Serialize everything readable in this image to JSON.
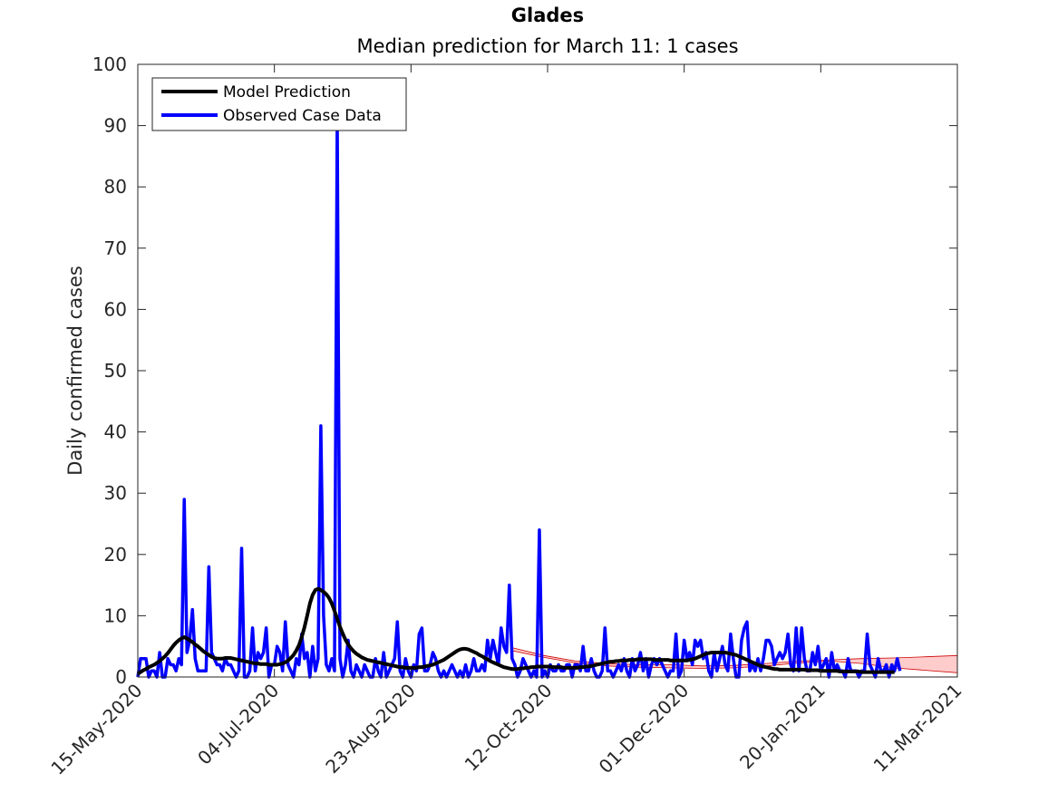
{
  "chart_data": {
    "type": "line",
    "title": "Glades",
    "subtitle": "Median prediction for March 11: 1 cases",
    "xlabel": "",
    "ylabel": "Daily confirmed cases",
    "xlim": [
      "2020-05-15",
      "2021-03-11"
    ],
    "ylim": [
      0,
      100
    ],
    "x_ticks": [
      "15-May-2020",
      "04-Jul-2020",
      "23-Aug-2020",
      "12-Oct-2020",
      "01-Dec-2020",
      "20-Jan-2021",
      "11-Mar-2021"
    ],
    "y_ticks": [
      0,
      10,
      20,
      30,
      40,
      50,
      60,
      70,
      80,
      90,
      100
    ],
    "grid": false,
    "legend_position": "top-left",
    "colors": {
      "prediction": "#000000",
      "observed": "#0000ff",
      "band_fill": "#ffcccc",
      "band_edge": "#cc0000"
    },
    "series": [
      {
        "name": "Model Prediction",
        "x_start": "2020-05-15",
        "x_step_days": 1,
        "values": [
          0.5,
          0.8,
          1.1,
          1.3,
          1.6,
          1.8,
          2.0,
          2.3,
          2.6,
          3.0,
          3.4,
          3.9,
          4.5,
          5.1,
          5.6,
          6.0,
          6.3,
          6.5,
          6.3,
          6.0,
          5.7,
          5.3,
          5.0,
          4.6,
          4.2,
          3.9,
          3.6,
          3.3,
          3.1,
          3.0,
          3.0,
          3.0,
          3.1,
          3.1,
          3.1,
          3.0,
          2.9,
          2.8,
          2.7,
          2.6,
          2.5,
          2.4,
          2.3,
          2.2,
          2.2,
          2.1,
          2.1,
          2.1,
          2.0,
          2.0,
          2.0,
          2.0,
          2.1,
          2.2,
          2.4,
          2.7,
          3.1,
          3.6,
          4.3,
          5.2,
          6.5,
          8.1,
          10.0,
          12.0,
          13.4,
          14.2,
          14.4,
          14.2,
          13.9,
          13.5,
          12.9,
          12.0,
          10.8,
          9.5,
          8.2,
          7.1,
          6.1,
          5.3,
          4.7,
          4.2,
          3.8,
          3.5,
          3.2,
          3.0,
          2.8,
          2.7,
          2.6,
          2.5,
          2.4,
          2.3,
          2.2,
          2.1,
          2.0,
          1.9,
          1.8,
          1.7,
          1.6,
          1.6,
          1.5,
          1.5,
          1.5,
          1.5,
          1.5,
          1.6,
          1.6,
          1.7,
          1.8,
          1.9,
          2.0,
          2.2,
          2.4,
          2.6,
          2.8,
          3.1,
          3.4,
          3.7,
          4.0,
          4.3,
          4.5,
          4.6,
          4.6,
          4.5,
          4.3,
          4.1,
          3.9,
          3.6,
          3.4,
          3.1,
          2.9,
          2.6,
          2.4,
          2.2,
          2.0,
          1.8,
          1.6,
          1.5,
          1.4,
          1.3,
          1.3,
          1.3,
          1.4,
          1.4,
          1.5,
          1.5,
          1.6,
          1.6,
          1.7,
          1.7,
          1.7,
          1.7,
          1.7,
          1.7,
          1.6,
          1.6,
          1.6,
          1.6,
          1.5,
          1.5,
          1.5,
          1.5,
          1.5,
          1.5,
          1.6,
          1.6,
          1.7,
          1.7,
          1.8,
          1.9,
          2.0,
          2.1,
          2.2,
          2.3,
          2.4,
          2.5,
          2.5,
          2.6,
          2.6,
          2.7,
          2.7,
          2.7,
          2.8,
          2.8,
          2.8,
          2.9,
          2.9,
          2.9,
          2.9,
          2.9,
          2.9,
          2.8,
          2.8,
          2.8,
          2.8,
          2.8,
          2.8,
          2.7,
          2.7,
          2.7,
          2.7,
          2.7,
          2.7,
          2.7,
          2.8,
          2.9,
          3.0,
          3.2,
          3.4,
          3.6,
          3.8,
          3.9,
          4.0,
          4.0,
          4.0,
          4.0,
          4.0,
          4.0,
          3.9,
          3.8,
          3.7,
          3.6,
          3.4,
          3.2,
          3.0,
          2.8,
          2.6,
          2.4,
          2.2,
          2.0,
          1.8,
          1.7,
          1.6,
          1.5,
          1.4,
          1.3,
          1.3,
          1.2,
          1.2,
          1.2,
          1.2,
          1.2,
          1.2,
          1.2,
          1.2,
          1.2,
          1.2,
          1.1,
          1.1,
          1.1,
          1.1,
          1.1,
          1.0,
          1.0,
          1.0,
          1.0,
          1.0,
          1.0,
          1.0,
          0.9,
          0.9,
          0.9,
          0.9,
          0.9,
          0.9,
          0.9,
          0.9,
          0.8,
          0.8,
          0.8,
          0.8,
          0.8,
          0.8,
          0.8,
          0.8,
          0.8,
          0.8,
          0.8,
          0.8,
          0.8
        ]
      },
      {
        "name": "Observed Case Data",
        "x_start": "2020-05-15",
        "x_step_days": 1,
        "values": [
          0,
          3,
          3,
          3,
          0,
          1,
          1,
          0,
          4,
          0,
          0,
          3,
          2,
          2,
          1,
          3,
          2,
          29,
          4,
          6,
          11,
          3,
          1,
          1,
          1,
          1,
          18,
          4,
          3,
          2,
          2,
          1,
          3,
          2,
          2,
          1,
          0,
          1,
          21,
          0,
          0,
          1,
          8,
          1,
          4,
          3,
          4,
          8,
          0,
          2,
          2,
          5,
          4,
          1,
          9,
          2,
          1,
          0,
          3,
          2,
          7,
          3,
          4,
          0,
          5,
          1,
          3,
          41,
          10,
          2,
          1,
          3,
          1,
          92,
          3,
          0,
          2,
          6,
          1,
          0,
          2,
          1,
          0,
          2,
          1,
          0,
          0,
          3,
          1,
          0,
          4,
          0,
          1,
          2,
          3,
          9,
          1,
          0,
          3,
          1,
          0,
          2,
          1,
          7,
          8,
          1,
          1,
          2,
          4,
          3,
          1,
          0,
          1,
          0,
          1,
          2,
          1,
          0,
          1,
          0,
          2,
          0,
          1,
          3,
          1,
          1,
          2,
          1,
          6,
          3,
          6,
          4,
          2,
          8,
          5,
          4,
          15,
          3,
          2,
          0,
          1,
          3,
          2,
          1,
          0,
          1,
          0,
          24,
          0,
          1,
          0,
          2,
          1,
          1,
          2,
          1,
          1,
          2,
          2,
          0,
          2,
          2,
          1,
          5,
          1,
          1,
          3,
          1,
          0,
          0,
          1,
          8,
          1,
          1,
          0,
          1,
          2,
          1,
          3,
          1,
          0,
          3,
          1,
          2,
          4,
          1,
          3,
          0,
          2,
          3,
          2,
          3,
          2,
          1,
          0,
          1,
          1,
          7,
          0,
          1,
          6,
          3,
          4,
          2,
          6,
          5,
          6,
          3,
          4,
          1,
          0,
          4,
          1,
          3,
          5,
          2,
          1,
          7,
          3,
          0,
          0,
          6,
          8,
          9,
          1,
          2,
          1,
          3,
          1,
          3,
          6,
          6,
          5,
          2,
          3,
          4,
          3,
          4,
          7,
          2,
          1,
          8,
          1,
          8,
          3,
          1,
          1,
          4,
          2,
          5,
          1,
          2,
          3,
          0,
          4,
          1,
          2,
          1,
          1,
          0,
          3,
          1,
          1,
          1,
          0,
          1,
          1,
          7,
          2,
          1,
          0,
          3,
          1,
          1,
          2,
          0,
          2,
          1,
          3,
          1
        ]
      }
    ],
    "uncertainty_band": {
      "x_start": "2020-09-29",
      "x_end": "2021-03-11",
      "upper": [
        4.8,
        3.5,
        2.6,
        2.2,
        2.0,
        2.0,
        1.8,
        1.9,
        2.2,
        2.6,
        2.8,
        3.0,
        3.1,
        3.3,
        3.5
      ],
      "lower": [
        4.3,
        3.2,
        2.3,
        1.8,
        1.6,
        1.5,
        1.4,
        1.5,
        1.8,
        2.3,
        2.6,
        2.2,
        1.5,
        1.1,
        0.7
      ]
    }
  },
  "legend": {
    "prediction_label": "Model Prediction",
    "observed_label": "Observed Case Data"
  }
}
